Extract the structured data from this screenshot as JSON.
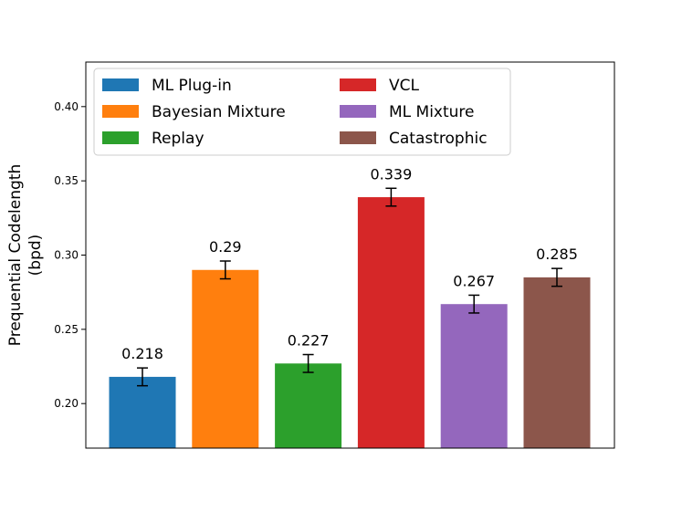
{
  "chart_data": {
    "type": "bar",
    "title": "",
    "xlabel": "",
    "ylabel": [
      "Prequential Codelength",
      "(bpd)"
    ],
    "ylim": [
      0.17,
      0.43
    ],
    "yticks": [
      "0.20",
      "0.25",
      "0.30",
      "0.35",
      "0.40"
    ],
    "grid": false,
    "legend_position": "top",
    "legend_columns": 2,
    "categories": [
      "ML Plug-in",
      "Bayesian Mixture",
      "Replay",
      "VCL",
      "ML Mixture",
      "Catastrophic"
    ],
    "values": [
      0.218,
      0.29,
      0.227,
      0.339,
      0.267,
      0.285
    ],
    "value_labels": [
      "0.218",
      "0.29",
      "0.227",
      "0.339",
      "0.267",
      "0.285"
    ],
    "errors": [
      0.006,
      0.006,
      0.006,
      0.006,
      0.006,
      0.006
    ],
    "colors": [
      "#1f77b4",
      "#ff7f0e",
      "#2ca02c",
      "#d62728",
      "#9467bd",
      "#8c564b"
    ]
  }
}
